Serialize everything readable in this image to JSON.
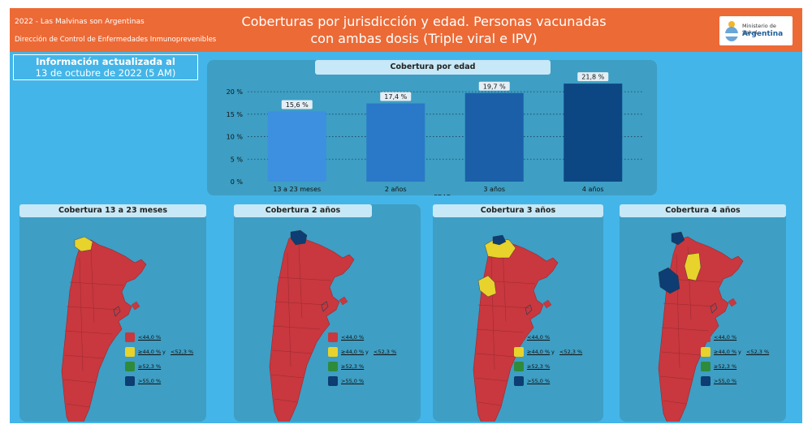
{
  "header": {
    "left_line1": "2022 - Las Malvinas son Argentinas",
    "left_line2": "Dirección de Control de Enfermedades Inmunoprevenibles",
    "title_line1": "Coberturas por jurisdicción y edad. Personas vacunadas",
    "title_line2": "con ambas dosis (Triple viral e IPV)",
    "logo_line1": "Ministerio de Salud",
    "logo_line2": "Argentina",
    "logo_icon": "sun-of-may-emblem-icon"
  },
  "info": {
    "line1": "Información actualizada al",
    "line2": "13 de octubre de 2022 (5 AM)"
  },
  "chart_data": {
    "type": "bar",
    "title": "Cobertura por edad",
    "categories": [
      "13 a 23 meses",
      "2 años",
      "3 años",
      "4 años"
    ],
    "values": [
      15.6,
      17.4,
      19.7,
      21.8
    ],
    "data_labels": [
      "15,6 %",
      "17,4 %",
      "19,7 %",
      "21,8 %"
    ],
    "colors": [
      "#3d8fe0",
      "#2a78c8",
      "#1a5fa8",
      "#0d4783"
    ],
    "xlabel": "EDAD",
    "ylabel": "",
    "ylim": [
      0,
      22
    ],
    "yticks": [
      0,
      5,
      10,
      15,
      20
    ],
    "ytick_labels": [
      "0 %",
      "5 %",
      "10 %",
      "15 %",
      "20 %"
    ],
    "grid": true
  },
  "legend": {
    "items": [
      {
        "text": "<44,0 %",
        "color": "#c8383e"
      },
      {
        "text": "≥44,0 %",
        "mid": "y",
        "text2": "<52,3 %",
        "color": "#e8d22c"
      },
      {
        "text": "≥52,3 %",
        "color": "#2e8b3c"
      },
      {
        "text": ">55,0 %",
        "color": "#0d3d72"
      }
    ]
  },
  "maps": [
    {
      "title": "Cobertura 13 a 23 meses"
    },
    {
      "title": "Cobertura 2 años"
    },
    {
      "title": "Cobertura 3 años"
    },
    {
      "title": "Cobertura 4 años"
    }
  ],
  "colors": {
    "background": "#44b5e8",
    "header": "#ec6a36",
    "panel": "#3e9ec4",
    "panel_title": "#c7e8f6",
    "map_red": "#c8383e"
  }
}
